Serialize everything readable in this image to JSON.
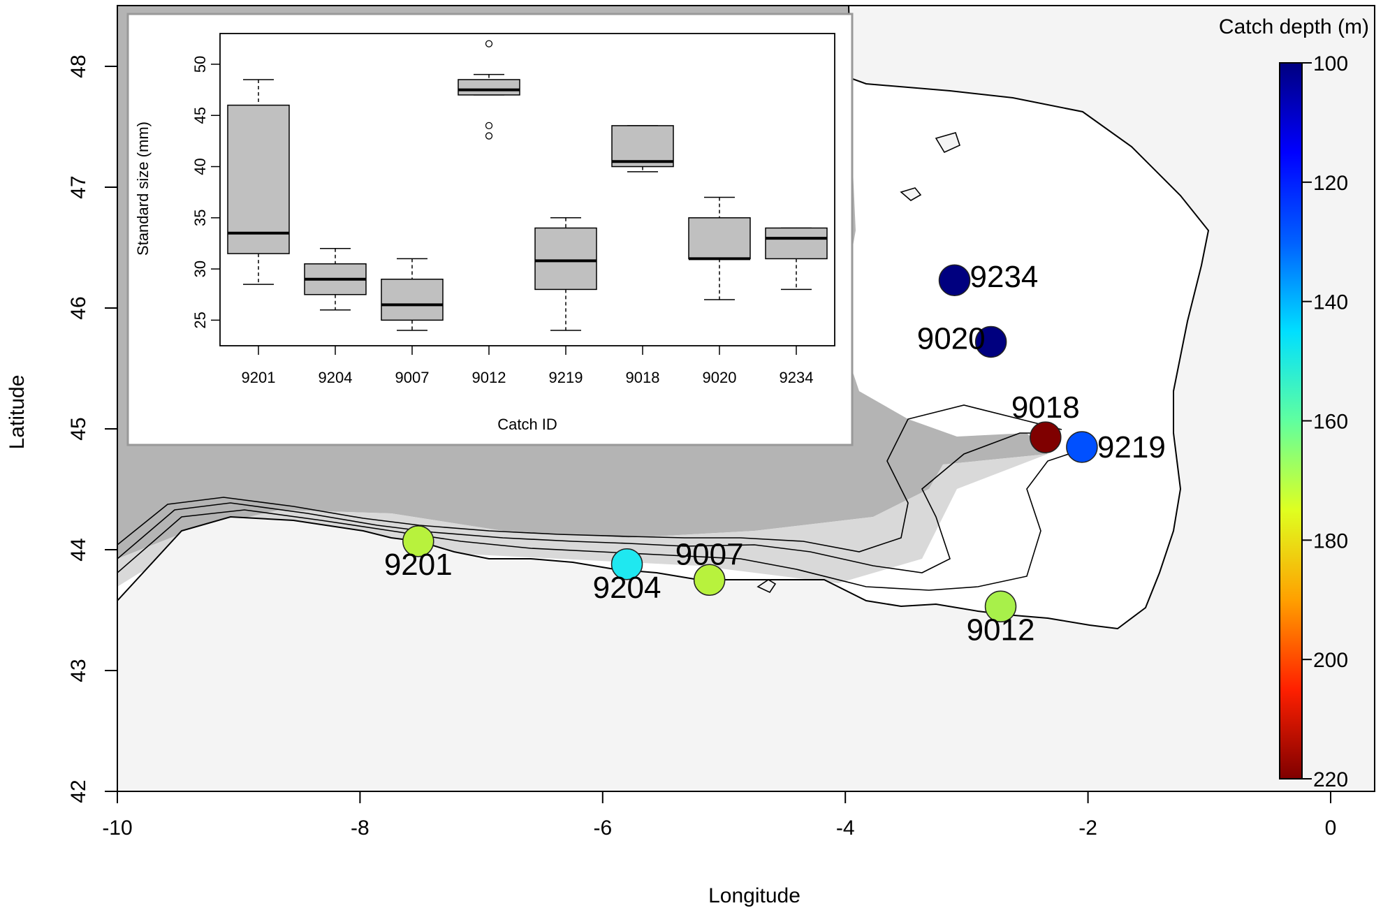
{
  "chart_data": [
    {
      "type": "scatter",
      "xlabel": "Longitude",
      "ylabel": "Latitude",
      "xlim": [
        -10,
        0
      ],
      "ylim": [
        42,
        48.5
      ],
      "x_ticks": [
        -10,
        -8,
        -6,
        -4,
        -2,
        0
      ],
      "y_ticks": [
        42,
        43,
        44,
        45,
        46,
        47,
        48
      ],
      "x_tick_labels": [
        "-10",
        "-8",
        "-6",
        "-4",
        "-2",
        "0"
      ],
      "y_tick_labels": [
        "42",
        "43",
        "44",
        "45",
        "46",
        "47",
        "48"
      ],
      "points": [
        {
          "id": "9234",
          "lon": -3.1,
          "lat": 46.23,
          "depth": 100,
          "color": "#00007f"
        },
        {
          "id": "9020",
          "lon": -2.8,
          "lat": 45.72,
          "depth": 100,
          "color": "#00007f"
        },
        {
          "id": "9018",
          "lon": -2.35,
          "lat": 44.93,
          "depth": 220,
          "color": "#7f0000"
        },
        {
          "id": "9219",
          "lon": -2.05,
          "lat": 44.85,
          "depth": 120,
          "color": "#0050ff"
        },
        {
          "id": "9201",
          "lon": -7.52,
          "lat": 44.07,
          "depth": 165,
          "color": "#b8f23d"
        },
        {
          "id": "9204",
          "lon": -5.8,
          "lat": 43.88,
          "depth": 140,
          "color": "#1fe8f0"
        },
        {
          "id": "9007",
          "lon": -5.12,
          "lat": 43.75,
          "depth": 165,
          "color": "#b8f23d"
        },
        {
          "id": "9012",
          "lon": -2.72,
          "lat": 43.53,
          "depth": 162,
          "color": "#a8f04a"
        }
      ],
      "colorbar": {
        "title": "Catch depth (m)",
        "range": [
          100,
          220
        ],
        "ticks": [
          100,
          120,
          140,
          160,
          180,
          200,
          220
        ],
        "tick_labels": [
          "100",
          "120",
          "140",
          "160",
          "180",
          "200",
          "220"
        ]
      }
    },
    {
      "type": "box",
      "xlabel": "Catch ID",
      "ylabel": "Standard size (mm)",
      "ylim": [
        22.5,
        53
      ],
      "y_ticks": [
        25,
        30,
        35,
        40,
        45,
        50
      ],
      "y_tick_labels": [
        "25",
        "30",
        "35",
        "40",
        "45",
        "50"
      ],
      "categories": [
        "9201",
        "9204",
        "9007",
        "9012",
        "9219",
        "9018",
        "9020",
        "9234"
      ],
      "boxes": [
        {
          "min": 28.5,
          "q1": 31.5,
          "median": 33.5,
          "q3": 46,
          "max": 48.5,
          "outliers": []
        },
        {
          "min": 26,
          "q1": 27.5,
          "median": 29,
          "q3": 30.5,
          "max": 32,
          "outliers": []
        },
        {
          "min": 24,
          "q1": 25,
          "median": 26.5,
          "q3": 29,
          "max": 31,
          "outliers": []
        },
        {
          "min": 47,
          "q1": 47,
          "median": 47.5,
          "q3": 48.5,
          "max": 49,
          "outliers": [
            52,
            44,
            43
          ]
        },
        {
          "min": 24,
          "q1": 28,
          "median": 30.8,
          "q3": 34,
          "max": 35,
          "outliers": []
        },
        {
          "min": 39.5,
          "q1": 40,
          "median": 40.5,
          "q3": 44,
          "max": 44,
          "outliers": []
        },
        {
          "min": 27,
          "q1": 31,
          "median": 31,
          "q3": 35,
          "max": 37,
          "outliers": []
        },
        {
          "min": 28,
          "q1": 31,
          "median": 33,
          "q3": 34,
          "max": 34,
          "outliers": []
        }
      ],
      "box_fill": "#c0c0c0"
    }
  ]
}
